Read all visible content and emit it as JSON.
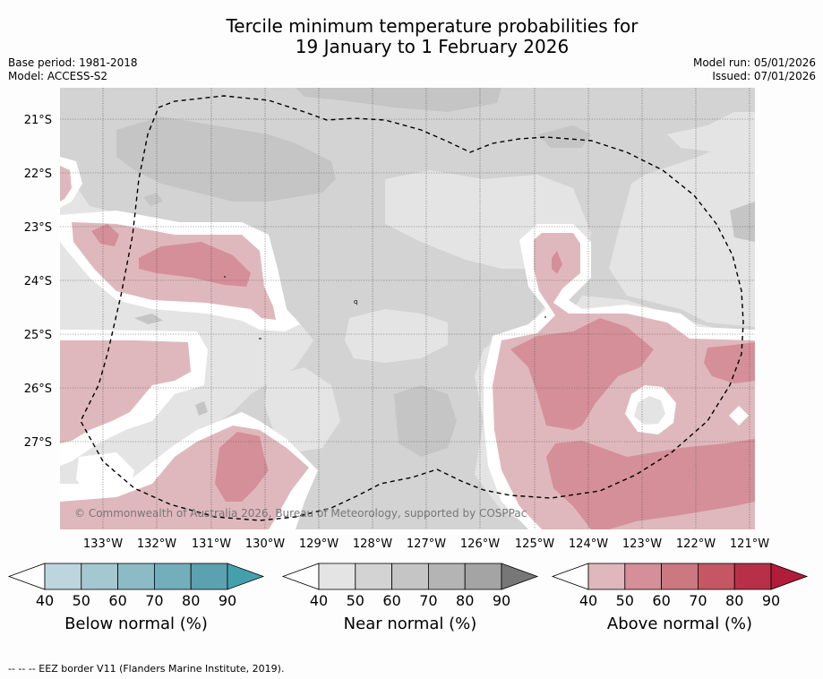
{
  "header": {
    "title_line1": "Tercile minimum temperature probabilities for",
    "title_line2": "19 January to 1 February 2026",
    "base_period": "Base period: 1981-2018",
    "model": "Model: ACCESS-S2",
    "model_run": "Model run: 05/01/2026",
    "issued": "Issued: 07/01/2026"
  },
  "map": {
    "lat_labels": [
      "21°S",
      "22°S",
      "23°S",
      "24°S",
      "25°S",
      "26°S",
      "27°S"
    ],
    "lon_labels": [
      "133°W",
      "132°W",
      "131°W",
      "130°W",
      "129°W",
      "128°W",
      "127°W",
      "126°W",
      "125°W",
      "124°W",
      "123°W",
      "122°W",
      "121°W"
    ],
    "copyright": "© Commonwealth of Australia 2026, Bureau of Meteorology, supported by COSPPac",
    "colors": {
      "near_normal_background": "#e4e4e4",
      "near_normal_50": "#d3d3d3",
      "near_normal_60": "#c5c5c5",
      "above_normal_40": "#dfb8bd",
      "above_normal_50": "#d58f98",
      "eez_border": "#000000"
    }
  },
  "colorbars": [
    {
      "label": "Below normal (%)",
      "ticks": [
        "40",
        "50",
        "60",
        "70",
        "80",
        "90"
      ],
      "colors": [
        "#ffffff",
        "#bdd5dc",
        "#a5c8d0",
        "#8cbac5",
        "#73aebb",
        "#5ba1b0",
        "#45a0ae"
      ]
    },
    {
      "label": "Near normal (%)",
      "ticks": [
        "40",
        "50",
        "60",
        "70",
        "80",
        "90"
      ],
      "colors": [
        "#ffffff",
        "#e4e4e4",
        "#d3d3d3",
        "#c5c5c5",
        "#b4b4b4",
        "#a4a4a4",
        "#777777"
      ]
    },
    {
      "label": "Above normal (%)",
      "ticks": [
        "40",
        "50",
        "60",
        "70",
        "80",
        "90"
      ],
      "colors": [
        "#ffffff",
        "#dfb8bd",
        "#d58f98",
        "#cc7880",
        "#c45763",
        "#b83048",
        "#b11c3a"
      ]
    }
  ],
  "footer": {
    "eez_legend": "--  --  -- EEZ border V11 (Flanders Marine Institute, 2019)."
  }
}
